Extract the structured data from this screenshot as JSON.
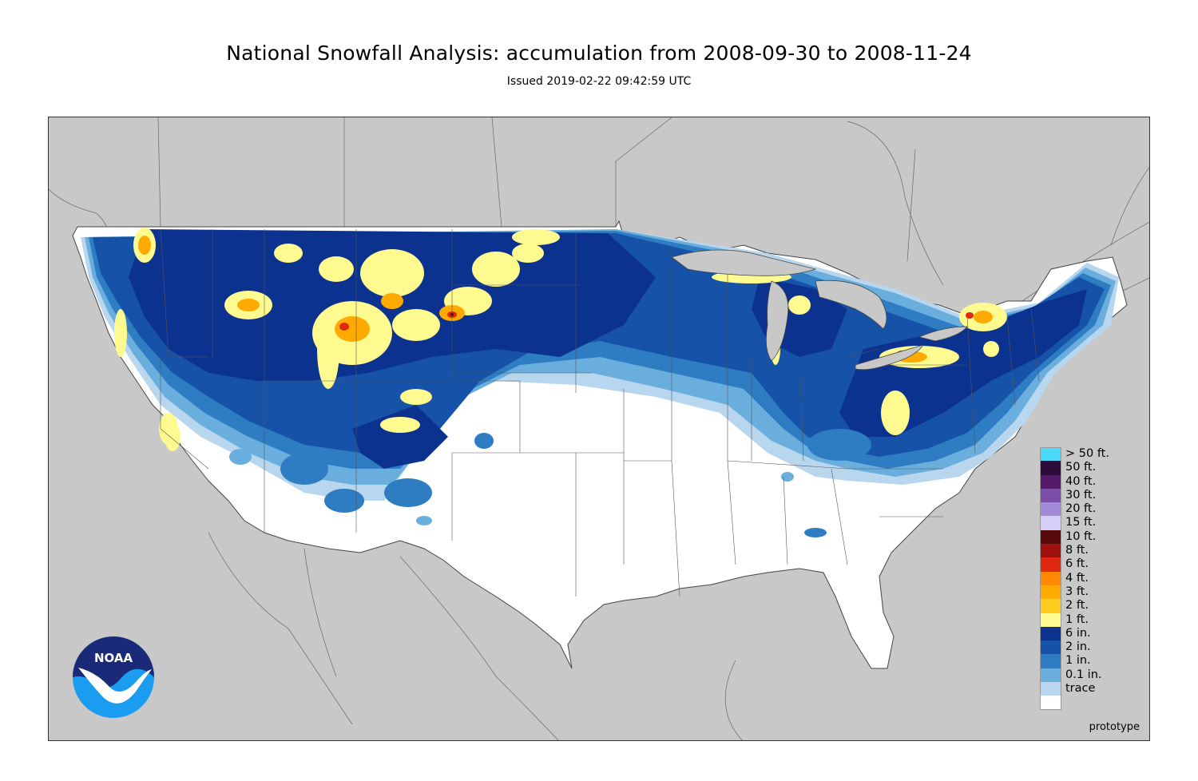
{
  "title": "National Snowfall Analysis: accumulation from 2008-09-30 to 2008-11-24",
  "subtitle": "Issued 2019-02-22 09:42:59 UTC",
  "footer_note": "prototype",
  "logo": {
    "text": "NOAA",
    "icon": "noaa-logo-icon"
  },
  "legend": [
    {
      "label": "> 50 ft.",
      "color": "#4ad8f8"
    },
    {
      "label": "50 ft.",
      "color": "#2c0a3a"
    },
    {
      "label": "40 ft.",
      "color": "#561a6a"
    },
    {
      "label": "30 ft.",
      "color": "#7a4ea6"
    },
    {
      "label": "20 ft.",
      "color": "#a08ad8"
    },
    {
      "label": "15 ft.",
      "color": "#d4cef8"
    },
    {
      "label": "10 ft.",
      "color": "#5a0a0a"
    },
    {
      "label": "8 ft.",
      "color": "#a01010"
    },
    {
      "label": "6 ft.",
      "color": "#e02810"
    },
    {
      "label": "4 ft.",
      "color": "#ff8800"
    },
    {
      "label": "3 ft.",
      "color": "#ffaa00"
    },
    {
      "label": "2 ft.",
      "color": "#ffcc20"
    },
    {
      "label": "1 ft.",
      "color": "#fffa90"
    },
    {
      "label": "6 in.",
      "color": "#0c3290"
    },
    {
      "label": "2 in.",
      "color": "#1652a8"
    },
    {
      "label": "1 in.",
      "color": "#2e7dc2"
    },
    {
      "label": "0.1 in.",
      "color": "#6aaede"
    },
    {
      "label": "trace",
      "color": "#b8d6ee"
    },
    {
      "label": "",
      "color": "#ffffff"
    }
  ],
  "colors": {
    "ocean_background": "#c8c8c8",
    "conus_land": "#ffffff",
    "border_lines": "#555555"
  }
}
